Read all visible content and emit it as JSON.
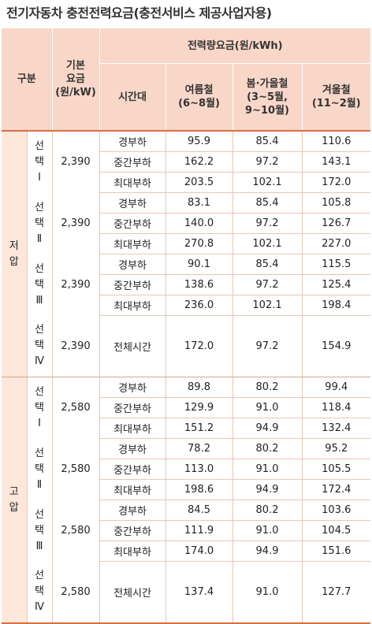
{
  "title": "전기자동차 충전전력요금(충전서비스 제공사업자용)",
  "colors": {
    "header_bg": "#f9d7c8",
    "group_bg": "#fde6da",
    "accent_line": "#d86f3f"
  },
  "header": {
    "category": "구분",
    "base_fee_line1": "기본",
    "base_fee_line2": "요금",
    "base_fee_line3": "(원/kW)",
    "energy_fee": "전력량요금(원/kWh)",
    "time_band": "시간대",
    "summer_line1": "여름철",
    "summer_line2": "(6~8월)",
    "springfall_line1": "봄·가을철",
    "springfall_line2": "(3~5월,",
    "springfall_line3": "9~10월)",
    "winter_line1": "겨울철",
    "winter_line2": "(11~2월)"
  },
  "sections": [
    {
      "group": [
        "저",
        "압"
      ],
      "options": [
        {
          "label": [
            "선",
            "택",
            "Ⅰ"
          ],
          "base_fee": "2,390",
          "rows": [
            {
              "band": "경부하",
              "summer": "95.9",
              "springfall": "85.4",
              "winter": "110.6"
            },
            {
              "band": "중간부하",
              "summer": "162.2",
              "springfall": "97.2",
              "winter": "143.1"
            },
            {
              "band": "최대부하",
              "summer": "203.5",
              "springfall": "102.1",
              "winter": "172.0"
            }
          ]
        },
        {
          "label": [
            "선",
            "택",
            "Ⅱ"
          ],
          "base_fee": "2,390",
          "rows": [
            {
              "band": "경부하",
              "summer": "83.1",
              "springfall": "85.4",
              "winter": "105.8"
            },
            {
              "band": "중간부하",
              "summer": "140.0",
              "springfall": "97.2",
              "winter": "126.7"
            },
            {
              "band": "최대부하",
              "summer": "270.8",
              "springfall": "102.1",
              "winter": "227.0"
            }
          ]
        },
        {
          "label": [
            "선",
            "택",
            "Ⅲ"
          ],
          "base_fee": "2,390",
          "rows": [
            {
              "band": "경부하",
              "summer": "90.1",
              "springfall": "85.4",
              "winter": "115.5"
            },
            {
              "band": "중간부하",
              "summer": "138.6",
              "springfall": "97.2",
              "winter": "125.4"
            },
            {
              "band": "최대부하",
              "summer": "236.0",
              "springfall": "102.1",
              "winter": "198.4"
            }
          ]
        },
        {
          "label": [
            "선",
            "택",
            "Ⅳ"
          ],
          "base_fee": "2,390",
          "rows": [
            {
              "band": "전체시간",
              "summer": "172.0",
              "springfall": "97.2",
              "winter": "154.9"
            }
          ]
        }
      ]
    },
    {
      "group": [
        "고",
        "압"
      ],
      "options": [
        {
          "label": [
            "선",
            "택",
            "Ⅰ"
          ],
          "base_fee": "2,580",
          "rows": [
            {
              "band": "경부하",
              "summer": "89.8",
              "springfall": "80.2",
              "winter": "99.4"
            },
            {
              "band": "중간부하",
              "summer": "129.9",
              "springfall": "91.0",
              "winter": "118.4"
            },
            {
              "band": "최대부하",
              "summer": "151.2",
              "springfall": "94.9",
              "winter": "132.4"
            }
          ]
        },
        {
          "label": [
            "선",
            "택",
            "Ⅱ"
          ],
          "base_fee": "2,580",
          "rows": [
            {
              "band": "경부하",
              "summer": "78.2",
              "springfall": "80.2",
              "winter": "95.2"
            },
            {
              "band": "중간부하",
              "summer": "113.0",
              "springfall": "91.0",
              "winter": "105.5"
            },
            {
              "band": "최대부하",
              "summer": "198.6",
              "springfall": "94.9",
              "winter": "172.4"
            }
          ]
        },
        {
          "label": [
            "선",
            "택",
            "Ⅲ"
          ],
          "base_fee": "2,580",
          "rows": [
            {
              "band": "경부하",
              "summer": "84.5",
              "springfall": "80.2",
              "winter": "103.6"
            },
            {
              "band": "중간부하",
              "summer": "111.9",
              "springfall": "91.0",
              "winter": "104.5"
            },
            {
              "band": "최대부하",
              "summer": "174.0",
              "springfall": "94.9",
              "winter": "151.6"
            }
          ]
        },
        {
          "label": [
            "선",
            "택",
            "Ⅳ"
          ],
          "base_fee": "2,580",
          "rows": [
            {
              "band": "전체시간",
              "summer": "137.4",
              "springfall": "91.0",
              "winter": "127.7"
            }
          ]
        }
      ]
    }
  ]
}
